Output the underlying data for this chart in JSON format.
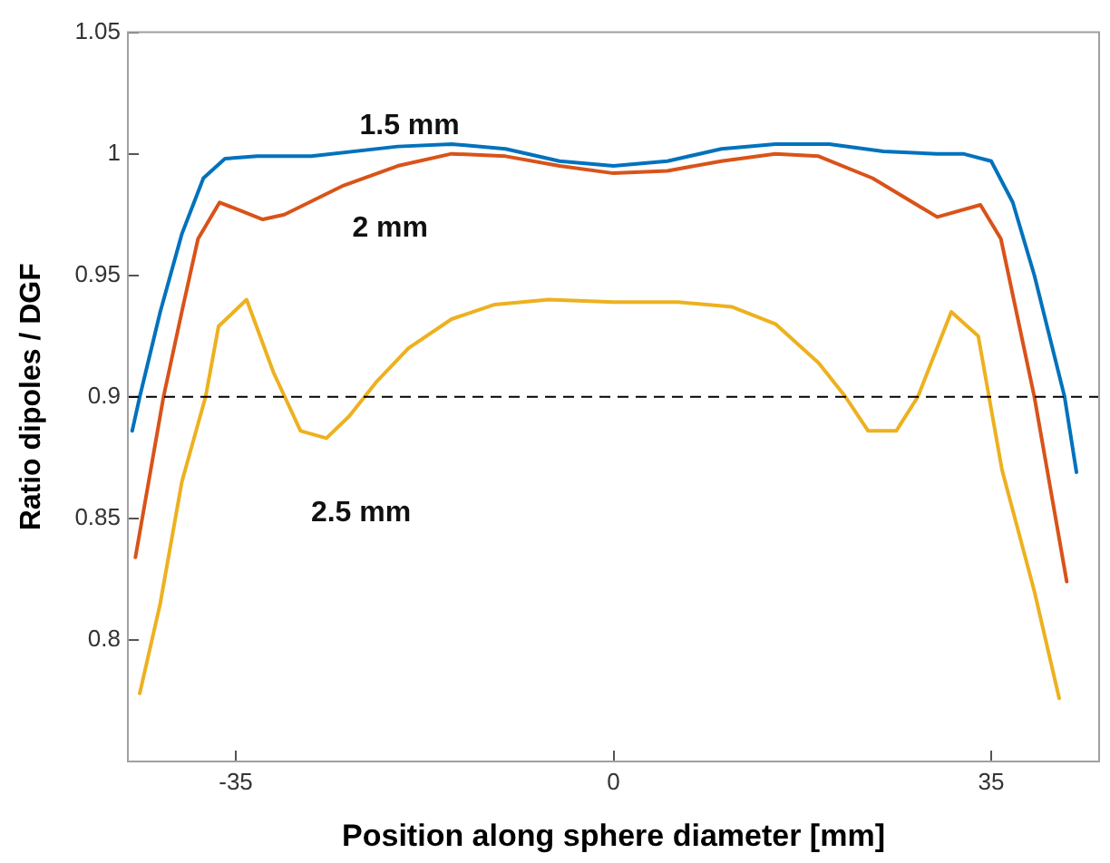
{
  "chart_data": {
    "type": "line",
    "xlabel": "Position along sphere diameter [mm]",
    "ylabel": "Ratio dipoles / DGF",
    "xlim": [
      -45,
      45
    ],
    "xticks": [
      -35,
      0,
      35
    ],
    "ylim": [
      0.75,
      1.05
    ],
    "yticks": [
      0.8,
      0.85,
      0.9,
      0.95,
      1,
      1.05
    ],
    "grid": false,
    "legend": false,
    "marker": "none",
    "line_style": "solid",
    "ref_lines": [
      {
        "axis": "y",
        "value": 0.9,
        "color": "#000000",
        "line_style": "dashed"
      }
    ],
    "series": [
      {
        "name": "1.5 mm",
        "color": "#0072bd",
        "x": [
          -44.6,
          -43.9,
          -42,
          -40,
          -38,
          -36,
          -33,
          -28,
          -20,
          -15,
          -10,
          -5,
          0,
          5,
          10,
          15,
          20,
          25,
          30,
          32.4,
          35,
          37,
          39,
          41.8,
          42.9
        ],
        "values": [
          0.886,
          0.9,
          0.935,
          0.967,
          0.99,
          0.998,
          0.999,
          0.999,
          1.003,
          1.004,
          1.002,
          0.997,
          0.995,
          0.997,
          1.002,
          1.004,
          1.004,
          1.001,
          1.0,
          1.0,
          0.997,
          0.98,
          0.95,
          0.9,
          0.869
        ]
      },
      {
        "name": "2 mm",
        "color": "#d95319",
        "x": [
          -44.3,
          -41.7,
          -40,
          -38.5,
          -36.5,
          -32.5,
          -30.5,
          -25,
          -20,
          -15,
          -10,
          -5,
          0,
          5,
          10,
          15,
          19,
          24,
          30,
          34,
          35.9,
          39,
          42
        ],
        "values": [
          0.834,
          0.9,
          0.935,
          0.965,
          0.98,
          0.973,
          0.975,
          0.987,
          0.995,
          1.0,
          0.999,
          0.995,
          0.992,
          0.993,
          0.997,
          1.0,
          0.999,
          0.99,
          0.974,
          0.979,
          0.965,
          0.9,
          0.824
        ]
      },
      {
        "name": "2.5 mm",
        "color": "#edb120",
        "x": [
          -43.9,
          -42,
          -40,
          -37.8,
          -36.6,
          -34,
          -31.5,
          -29,
          -26.6,
          -24.5,
          -22,
          -19,
          -15,
          -11,
          -6,
          0,
          6,
          11,
          15,
          19,
          21.5,
          23.6,
          26.2,
          28.2,
          31.3,
          33.8,
          36,
          39,
          41.3
        ],
        "values": [
          0.778,
          0.815,
          0.865,
          0.9,
          0.929,
          0.94,
          0.91,
          0.886,
          0.883,
          0.892,
          0.906,
          0.92,
          0.932,
          0.938,
          0.94,
          0.939,
          0.939,
          0.937,
          0.93,
          0.914,
          0.9,
          0.886,
          0.886,
          0.9,
          0.935,
          0.925,
          0.87,
          0.82,
          0.776
        ]
      }
    ]
  }
}
